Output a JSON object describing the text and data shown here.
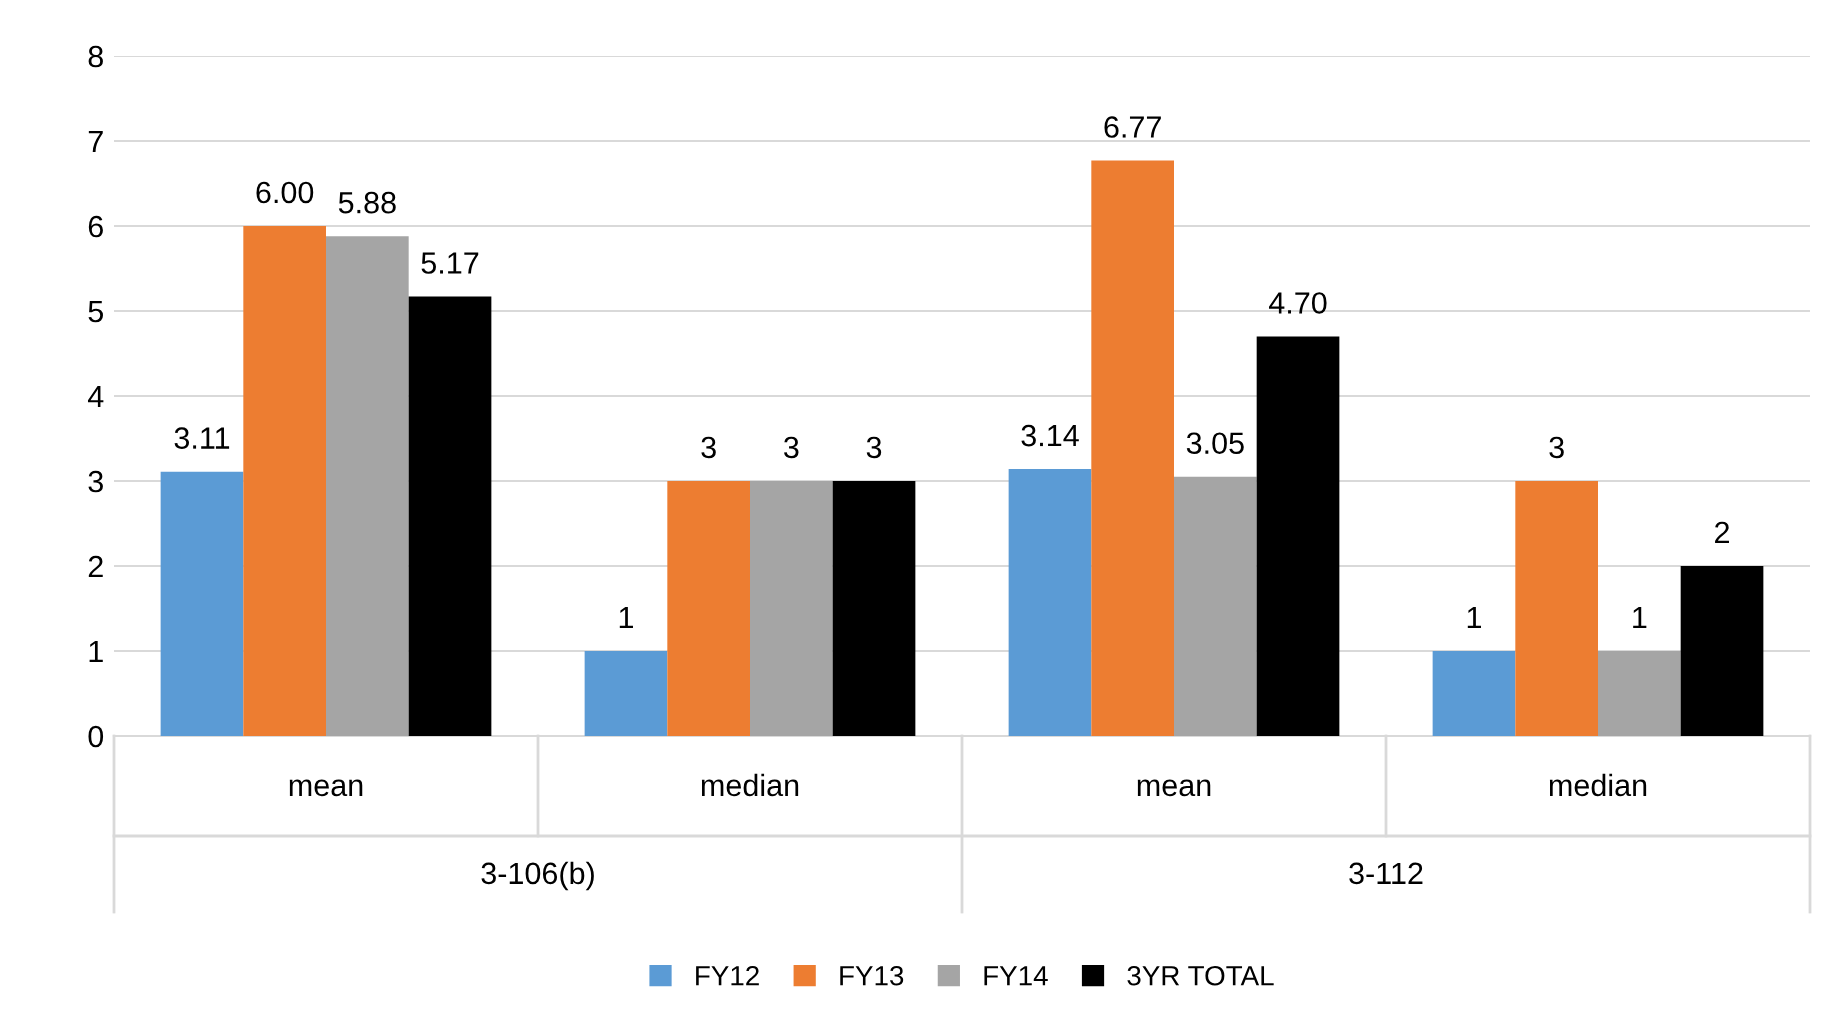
{
  "chart_data": {
    "type": "bar",
    "categories": [
      "mean",
      "median",
      "mean",
      "median"
    ],
    "annotations": [
      "3-106(b)",
      "3-112"
    ],
    "series": [
      {
        "name": "FY12",
        "color": "#5b9bd5",
        "values": [
          3.11,
          1,
          3.14,
          1
        ],
        "value_labels": [
          "3.11",
          "1",
          "3.14",
          "1"
        ]
      },
      {
        "name": "FY13",
        "color": "#ed7d31",
        "values": [
          6.0,
          3,
          6.77,
          3
        ],
        "value_labels": [
          "6.00",
          "3",
          "6.77",
          "3"
        ]
      },
      {
        "name": "FY14",
        "color": "#a5a5a5",
        "values": [
          5.88,
          3,
          3.05,
          1
        ],
        "value_labels": [
          "5.88",
          "3",
          "3.05",
          "1"
        ]
      },
      {
        "name": "3YR TOTAL",
        "color": "#000000",
        "values": [
          5.17,
          3,
          4.7,
          2
        ],
        "value_labels": [
          "5.17",
          "3",
          "4.70",
          "2"
        ]
      }
    ],
    "ylim": [
      0,
      8
    ],
    "yticks": [
      0,
      1,
      2,
      3,
      4,
      5,
      6,
      7,
      8
    ],
    "grid": "y",
    "legend": "bottom"
  }
}
